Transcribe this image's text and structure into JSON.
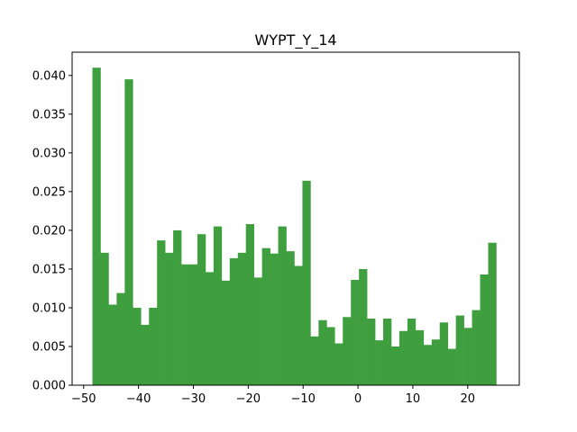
{
  "chart_data": {
    "type": "bar",
    "title": "WYPT_Y_14",
    "xlabel": "",
    "ylabel": "",
    "bar_color": "#3f9f3f",
    "grid": false,
    "xlim": [
      -52.1,
      29.4
    ],
    "ylim": [
      0,
      0.043
    ],
    "xticks": [
      -50,
      -40,
      -30,
      -20,
      -10,
      0,
      10,
      20
    ],
    "xtick_labels": [
      "−50",
      "−40",
      "−30",
      "−20",
      "−10",
      "0",
      "10",
      "20"
    ],
    "yticks": [
      0.0,
      0.005,
      0.01,
      0.015,
      0.02,
      0.025,
      0.03,
      0.035,
      0.04
    ],
    "ytick_labels": [
      "0.000",
      "0.005",
      "0.010",
      "0.015",
      "0.020",
      "0.025",
      "0.030",
      "0.035",
      "0.040"
    ],
    "bin_start": -48.4,
    "bin_width": 1.472,
    "values": [
      0.041,
      0.0171,
      0.0104,
      0.0119,
      0.0395,
      0.01,
      0.0078,
      0.01,
      0.0187,
      0.0171,
      0.02,
      0.0156,
      0.0156,
      0.0195,
      0.0146,
      0.0205,
      0.0135,
      0.0164,
      0.0171,
      0.0208,
      0.0139,
      0.0177,
      0.017,
      0.0205,
      0.0173,
      0.0154,
      0.0264,
      0.0063,
      0.0084,
      0.0075,
      0.0054,
      0.0088,
      0.0136,
      0.015,
      0.0086,
      0.0058,
      0.0086,
      0.005,
      0.007,
      0.0086,
      0.0071,
      0.0052,
      0.0059,
      0.0081,
      0.0047,
      0.009,
      0.0074,
      0.0097,
      0.0143,
      0.0184
    ]
  }
}
